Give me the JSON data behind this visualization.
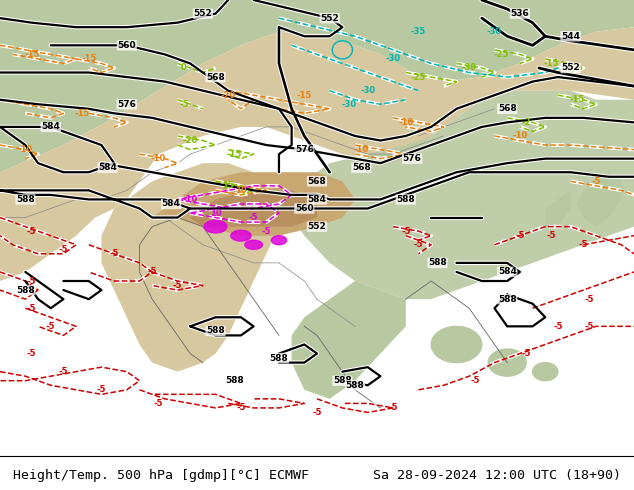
{
  "title_left": "Height/Temp. 500 hPa [gdmp][°C] ECMWF",
  "title_right": "Sa 28-09-2024 12:00 UTC (18+90)",
  "title_fontsize": 9.5,
  "title_color": "#000000",
  "bg_color": "#ffffff",
  "fig_width": 6.34,
  "fig_height": 4.9,
  "dpi": 100,
  "bottom_bar_height": 0.075
}
